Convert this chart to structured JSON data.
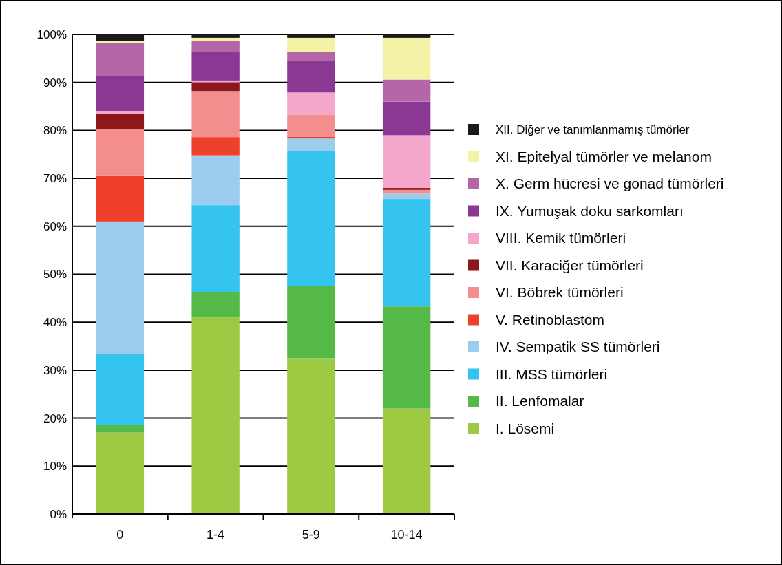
{
  "chart_data": {
    "type": "bar",
    "stacked": true,
    "categories": [
      "0",
      "1-4",
      "5-9",
      "10-14"
    ],
    "ylim": [
      0,
      100
    ],
    "yticks": [
      {
        "value": 0,
        "label": "0%"
      },
      {
        "value": 10,
        "label": "10%"
      },
      {
        "value": 20,
        "label": "20%"
      },
      {
        "value": 30,
        "label": "30%"
      },
      {
        "value": 40,
        "label": "40%"
      },
      {
        "value": 50,
        "label": "50%"
      },
      {
        "value": 60,
        "label": "60%"
      },
      {
        "value": 70,
        "label": "70%"
      },
      {
        "value": 80,
        "label": "80%"
      },
      {
        "value": 90,
        "label": "90%"
      },
      {
        "value": 100,
        "label": "100%"
      }
    ],
    "grid": "y",
    "legend": "right",
    "series": [
      {
        "name": "I. Lösemi",
        "color": "#9dc943",
        "values": [
          17,
          41,
          32.5,
          22
        ]
      },
      {
        "name": "II. Lenfomalar",
        "color": "#55b947",
        "values": [
          1.6,
          5.3,
          15,
          21.3
        ]
      },
      {
        "name": "III. MSS tümörleri",
        "color": "#35c4ef",
        "values": [
          14.7,
          18.1,
          28.2,
          22.4
        ]
      },
      {
        "name": "IV. Sempatik SS tümörleri",
        "color": "#9dcdee",
        "values": [
          27.7,
          10.4,
          2.6,
          1.1
        ]
      },
      {
        "name": "V. Retinoblastom",
        "color": "#ef402b",
        "values": [
          9.5,
          3.8,
          0.4,
          0
        ]
      },
      {
        "name": "VI. Böbrek tümörleri",
        "color": "#f28f8e",
        "values": [
          9.7,
          9.6,
          4.6,
          0.8
        ]
      },
      {
        "name": "VII. Karaciğer tümörleri",
        "color": "#8e171b",
        "values": [
          3.3,
          1.8,
          0,
          0.4
        ]
      },
      {
        "name": "VIII. Kemik tümörleri",
        "color": "#f4a6cb",
        "values": [
          0.5,
          0.4,
          4.6,
          11
        ]
      },
      {
        "name": "IX. Yumuşak doku sarkomları",
        "color": "#8a3893",
        "values": [
          7.3,
          6,
          6.6,
          7
        ]
      },
      {
        "name": "X. Germ hücresi ve gonad tümörleri",
        "color": "#b566a8",
        "values": [
          6.9,
          2.2,
          1.9,
          4.6
        ]
      },
      {
        "name": "XI. Epitelyal tümörler ve melanom",
        "color": "#f4f2a6",
        "values": [
          0.5,
          0.7,
          2.9,
          8.7
        ]
      },
      {
        "name": "XII. Diğer ve tanımlanmamış tümörler",
        "color": "#1a1a1a",
        "values": [
          1.3,
          0.7,
          0.7,
          0.7
        ]
      }
    ]
  }
}
